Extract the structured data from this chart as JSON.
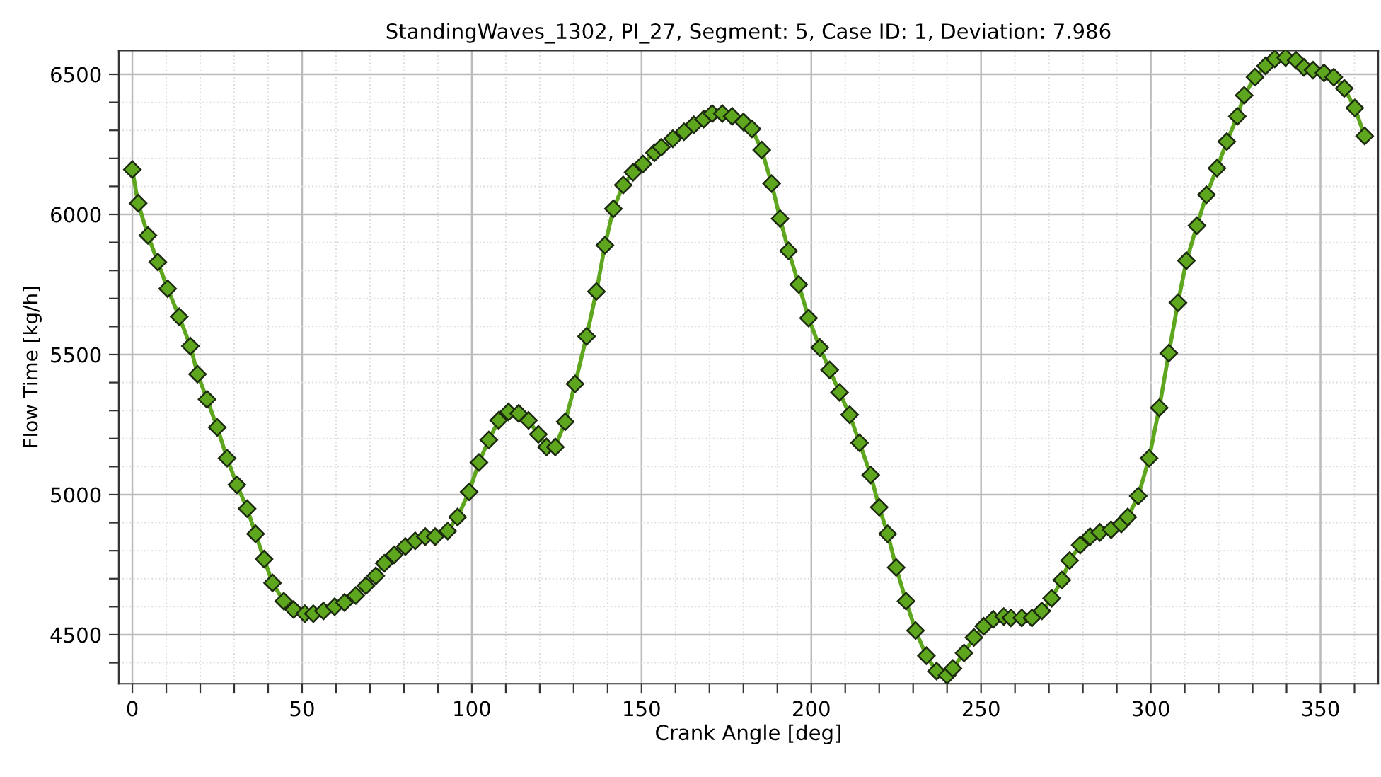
{
  "chart_data": {
    "type": "line",
    "title": "StandingWaves_1302, PI_27, Segment: 5, Case ID: 1, Deviation: 7.986",
    "xlabel": "Crank Angle [deg]",
    "ylabel": "Flow Time [kg/h]",
    "x": [
      0,
      1.7,
      4.6,
      7.5,
      10.4,
      13.8,
      17.1,
      19.2,
      22,
      25,
      27.9,
      30.8,
      33.8,
      36.3,
      38.8,
      41.3,
      44.6,
      47.5,
      50.8,
      53.3,
      56.3,
      59.6,
      62.5,
      65.8,
      68.8,
      71.7,
      74.2,
      77.1,
      80.4,
      83.3,
      86.3,
      89.2,
      92.9,
      95.8,
      99.2,
      102.1,
      105,
      107.9,
      110.8,
      113.8,
      116.7,
      119.6,
      122,
      124.6,
      127.5,
      130.4,
      133.8,
      136.7,
      139.2,
      141.7,
      144.6,
      147.5,
      150.4,
      153.8,
      155.8,
      159.2,
      162.5,
      165.4,
      168.3,
      170.8,
      173.8,
      176.7,
      180,
      182.5,
      185.4,
      188.3,
      190.8,
      193.3,
      196.3,
      199.2,
      202.5,
      205.4,
      208.3,
      211.3,
      214.2,
      217.5,
      220,
      222.5,
      225,
      227.9,
      230.7,
      233.9,
      236.9,
      240,
      241.7,
      245,
      247.9,
      250.8,
      253.6,
      256.7,
      258.8,
      262,
      265,
      267.9,
      270.8,
      273.8,
      276.1,
      279.2,
      282.1,
      285,
      288.3,
      291.3,
      293.2,
      296.3,
      299.5,
      302.5,
      305.3,
      308,
      310.5,
      313.6,
      316.4,
      319.5,
      322.4,
      325.5,
      327.5,
      330.7,
      333.8,
      336.5,
      339.7,
      342.8,
      345.1,
      347.8,
      351,
      353.9,
      357,
      360.1,
      363
    ],
    "series": [
      {
        "color": "#5ea61e",
        "values": [
          6160,
          6040,
          5925,
          5830,
          5735,
          5635,
          5530,
          5430,
          5340,
          5240,
          5130,
          5035,
          4950,
          4860,
          4770,
          4685,
          4620,
          4590,
          4575,
          4575,
          4585,
          4600,
          4615,
          4640,
          4675,
          4710,
          4755,
          4785,
          4815,
          4835,
          4850,
          4850,
          4870,
          4920,
          5010,
          5115,
          5195,
          5265,
          5295,
          5290,
          5265,
          5215,
          5170,
          5170,
          5260,
          5395,
          5565,
          5725,
          5890,
          6020,
          6105,
          6150,
          6180,
          6220,
          6240,
          6270,
          6295,
          6320,
          6340,
          6360,
          6360,
          6350,
          6330,
          6305,
          6230,
          6110,
          5985,
          5870,
          5750,
          5630,
          5525,
          5445,
          5365,
          5285,
          5185,
          5070,
          4955,
          4860,
          4740,
          4620,
          4515,
          4425,
          4370,
          4355,
          4380,
          4435,
          4490,
          4530,
          4555,
          4565,
          4560,
          4560,
          4560,
          4585,
          4630,
          4695,
          4765,
          4820,
          4850,
          4865,
          4875,
          4895,
          4920,
          4995,
          5130,
          5310,
          5505,
          5685,
          5835,
          5960,
          6070,
          6165,
          6260,
          6350,
          6425,
          6490,
          6530,
          6555,
          6560,
          6550,
          6525,
          6515,
          6505,
          6490,
          6450,
          6380,
          6280
        ]
      }
    ],
    "marker": "diamond",
    "line_style": "solid",
    "grid": true,
    "xlim": [
      -4,
      367
    ],
    "ylim": [
      4325,
      6585
    ],
    "xticks": [
      0,
      {
        "value": 10,
        "label": null
      },
      {
        "value": 20,
        "label": null
      },
      {
        "value": 30,
        "label": null
      },
      {
        "value": 40,
        "label": null
      },
      50,
      {
        "value": 60,
        "label": null
      },
      {
        "value": 70,
        "label": null
      },
      {
        "value": 80,
        "label": null
      },
      {
        "value": 90,
        "label": null
      },
      100,
      {
        "value": 110,
        "label": null
      },
      {
        "value": 120,
        "label": null
      },
      {
        "value": 130,
        "label": null
      },
      {
        "value": 140,
        "label": null
      },
      150,
      {
        "value": 160,
        "label": null
      },
      {
        "value": 170,
        "label": null
      },
      {
        "value": 180,
        "label": null
      },
      {
        "value": 190,
        "label": null
      },
      200,
      {
        "value": 210,
        "label": null
      },
      {
        "value": 220,
        "label": null
      },
      {
        "value": 230,
        "label": null
      },
      {
        "value": 240,
        "label": null
      },
      250,
      {
        "value": 260,
        "label": null
      },
      {
        "value": 270,
        "label": null
      },
      {
        "value": 280,
        "label": null
      },
      {
        "value": 290,
        "label": null
      },
      300,
      {
        "value": 310,
        "label": null
      },
      {
        "value": 320,
        "label": null
      },
      {
        "value": 330,
        "label": null
      },
      {
        "value": 340,
        "label": null
      },
      350,
      {
        "value": 360,
        "label": null
      }
    ],
    "yticks": [
      {
        "value": 4400,
        "label": null
      },
      4500,
      {
        "value": 4600,
        "label": null
      },
      {
        "value": 4700,
        "label": null
      },
      {
        "value": 4800,
        "label": null
      },
      {
        "value": 4900,
        "label": null
      },
      5000,
      {
        "value": 5100,
        "label": null
      },
      {
        "value": 5200,
        "label": null
      },
      {
        "value": 5300,
        "label": null
      },
      {
        "value": 5400,
        "label": null
      },
      5500,
      {
        "value": 5600,
        "label": null
      },
      {
        "value": 5700,
        "label": null
      },
      {
        "value": 5800,
        "label": null
      },
      {
        "value": 5900,
        "label": null
      },
      6000,
      {
        "value": 6100,
        "label": null
      },
      {
        "value": 6200,
        "label": null
      },
      {
        "value": 6300,
        "label": null
      },
      {
        "value": 6400,
        "label": null
      },
      6500
    ]
  }
}
